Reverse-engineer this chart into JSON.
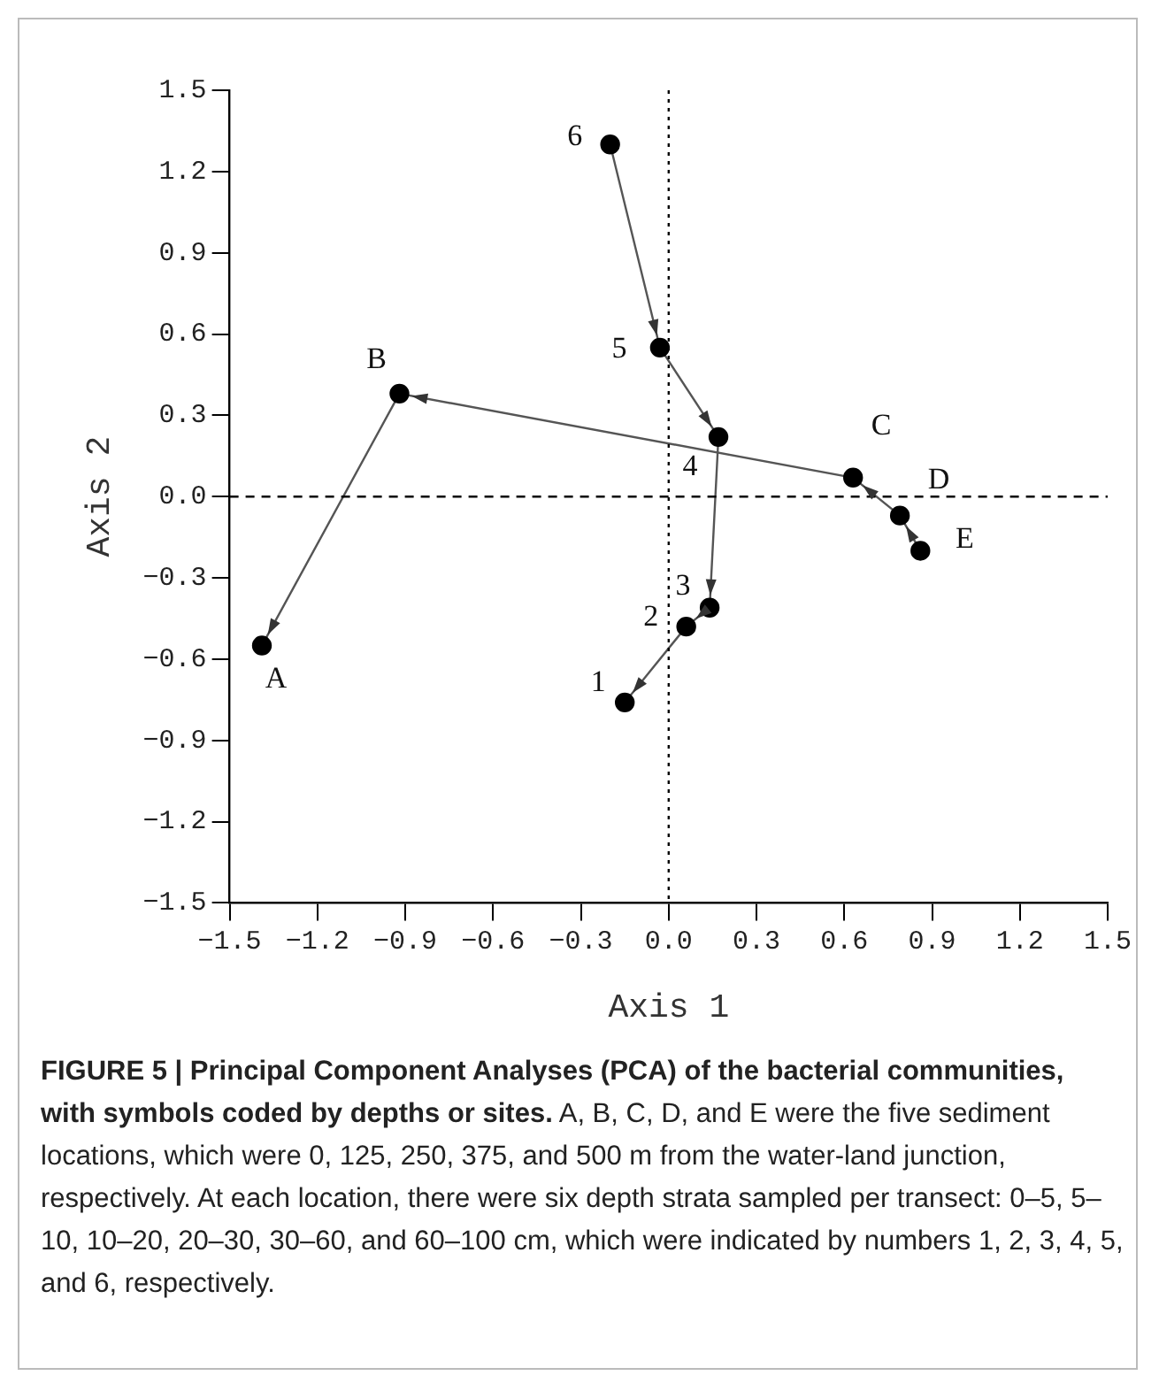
{
  "chart_data": {
    "type": "scatter",
    "title": "FIGURE 5 | Principal Component Analyses (PCA) of the bacterial communities, with symbols coded by depths or sites.",
    "xlabel": "Axis 1",
    "ylabel": "Axis 2",
    "series": [
      {
        "type": "line",
        "color": "#000000",
        "x": [
          -0.2,
          -0.03,
          0.17,
          0.14,
          0.06,
          -0.15
        ],
        "values": [
          1.3,
          0.55,
          0.22,
          -0.41,
          -0.48,
          -0.76
        ]
      },
      {
        "type": "line",
        "color": "#000000",
        "x": [
          0.86,
          0.79,
          0.63,
          -0.92,
          -1.39
        ],
        "values": [
          -0.2,
          -0.07,
          0.07,
          0.38,
          -0.55
        ]
      }
    ],
    "marker": "circle",
    "line_style": "solid",
    "xlim": [
      -1.5,
      1.5
    ],
    "xticks": [
      -1.5,
      -1.2,
      -0.9,
      -0.6,
      -0.3,
      {
        "value": 0,
        "label": "0.0"
      },
      0.3,
      0.6,
      0.9,
      1.2,
      1.5
    ],
    "ylim": [
      -1.5,
      1.5
    ],
    "yticks": [
      -1.5,
      -1.2,
      -0.9,
      -0.6,
      -0.3,
      {
        "value": 0,
        "label": "0.0"
      },
      0.3,
      0.6,
      0.9,
      1.2,
      1.5
    ],
    "grid": false,
    "legend": false,
    "ref_lines": [
      {
        "axis": "x",
        "value": 0,
        "line_style": "dotted",
        "color": "#000000"
      },
      {
        "axis": "y",
        "value": 0,
        "line_style": "dashed",
        "color": "#000000"
      }
    ],
    "annotations": [
      {
        "text": "6",
        "x": -0.2,
        "y": 1.3
      },
      {
        "text": "5",
        "x": -0.03,
        "y": 0.55
      },
      {
        "text": "4",
        "x": 0.17,
        "y": 0.22
      },
      {
        "text": "3",
        "x": 0.14,
        "y": -0.41
      },
      {
        "text": "2",
        "x": 0.06,
        "y": -0.48
      },
      {
        "text": "1",
        "x": -0.15,
        "y": -0.76
      },
      {
        "text": "E",
        "x": 0.86,
        "y": -0.2
      },
      {
        "text": "D",
        "x": 0.79,
        "y": -0.07
      },
      {
        "text": "C",
        "x": 0.63,
        "y": 0.07
      },
      {
        "text": "B",
        "x": -0.92,
        "y": 0.38
      },
      {
        "text": "A",
        "x": -1.39,
        "y": -0.55
      },
      "A, B, C, D, and E were the five sediment locations, which were 0, 125, 250, 375, and 500 m from the water-land junction, respectively. At each location, there were six depth strata sampled per transect: 0–5, 5–10, 10–20, 20–30, 30–60, and 60–100 cm, which were indicated by numbers 1, 2, 3, 4, 5, and 6, respectively."
    ]
  }
}
